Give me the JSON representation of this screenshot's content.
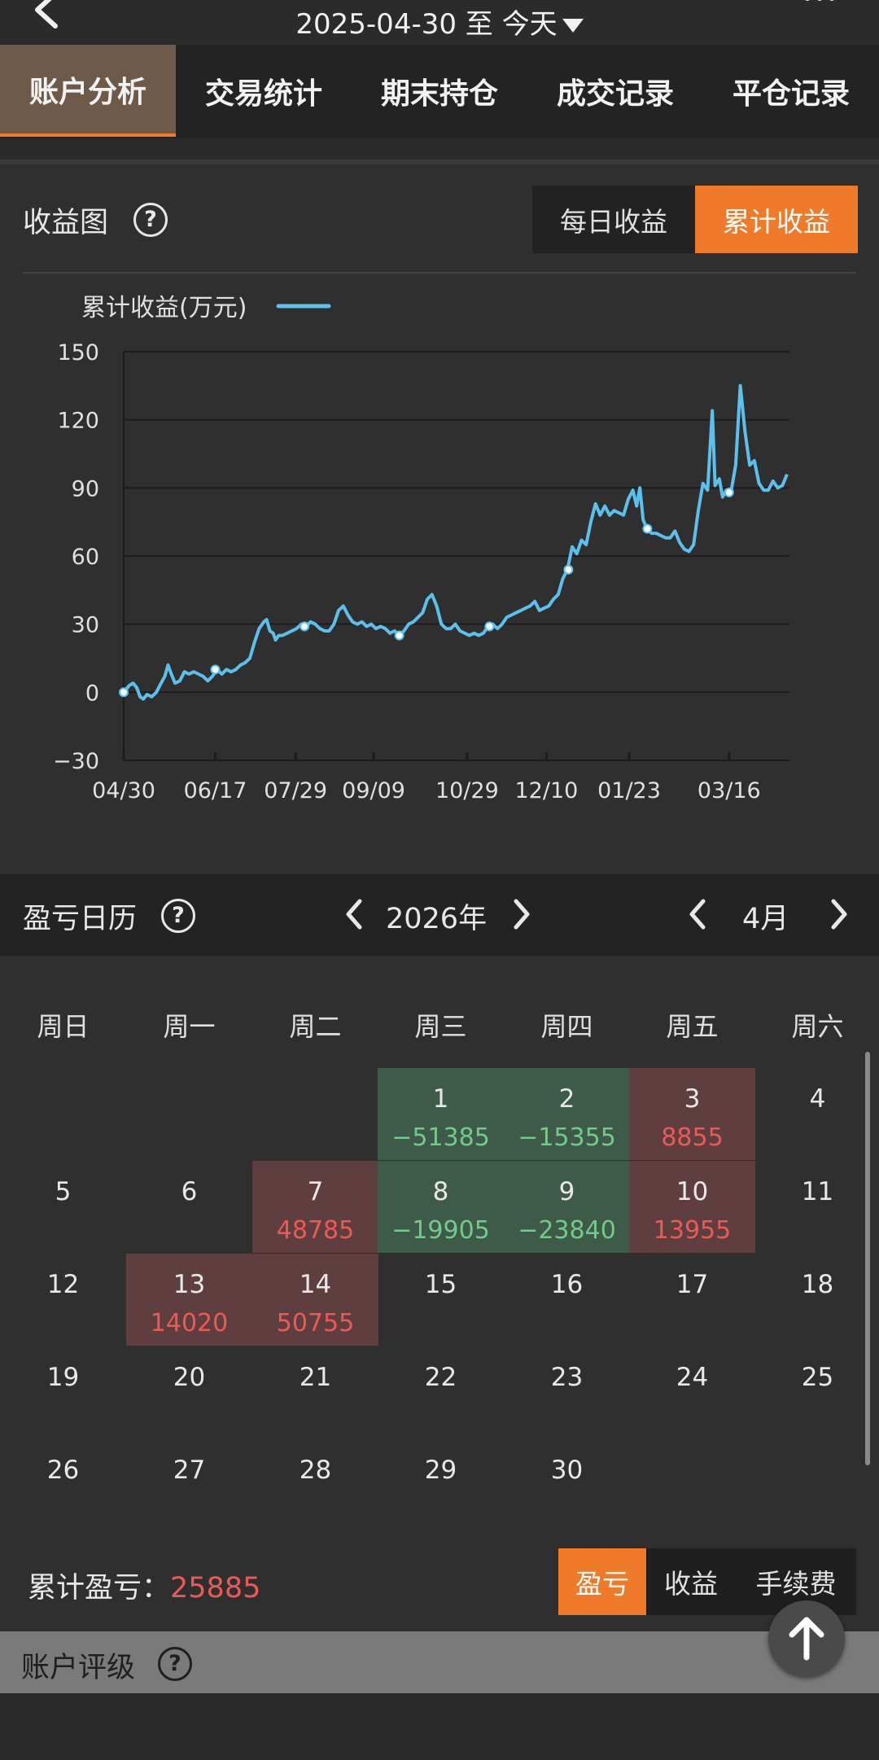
{
  "header": {
    "date_from": "2025-04-30",
    "date_sep": "至",
    "date_to": "今天"
  },
  "tabs": [
    {
      "label": "账户分析",
      "active": true
    },
    {
      "label": "交易统计",
      "active": false
    },
    {
      "label": "期末持仓",
      "active": false
    },
    {
      "label": "成交记录",
      "active": false
    },
    {
      "label": "平仓记录",
      "active": false
    }
  ],
  "profit_chart": {
    "title": "收益图",
    "help": "?",
    "toggle": [
      {
        "label": "每日收益",
        "active": false
      },
      {
        "label": "累计收益",
        "active": true
      }
    ]
  },
  "chart_data": {
    "type": "line",
    "legend": "累计收益(万元)",
    "series_color": "#5bc0eb",
    "x_labels": [
      "04/30",
      "06/17",
      "07/29",
      "09/09",
      "10/29",
      "12/10",
      "01/23",
      "03/16"
    ],
    "y_ticks": [
      "150",
      "120",
      "90",
      "60",
      "30",
      "0",
      "−30"
    ],
    "ylim": [
      -30,
      150
    ],
    "grid": true,
    "legend_position": "top-left",
    "points": [
      [
        0,
        0
      ],
      [
        1.2,
        3
      ],
      [
        2,
        4
      ],
      [
        2.8,
        2
      ],
      [
        3.5,
        -2
      ],
      [
        4.2,
        -3
      ],
      [
        5,
        -1
      ],
      [
        6,
        -2
      ],
      [
        7,
        0
      ],
      [
        8,
        4
      ],
      [
        8.8,
        7
      ],
      [
        9.5,
        12
      ],
      [
        10.2,
        8
      ],
      [
        11,
        4
      ],
      [
        12,
        5
      ],
      [
        13,
        9
      ],
      [
        14,
        8
      ],
      [
        15,
        9
      ],
      [
        16,
        8
      ],
      [
        17,
        7
      ],
      [
        18,
        5
      ],
      [
        19,
        7
      ],
      [
        20,
        10
      ],
      [
        21,
        8
      ],
      [
        22,
        10
      ],
      [
        23,
        9
      ],
      [
        24,
        10
      ],
      [
        25,
        12
      ],
      [
        26,
        13
      ],
      [
        27,
        15
      ],
      [
        28,
        22
      ],
      [
        29,
        28
      ],
      [
        30,
        31
      ],
      [
        30.6,
        32
      ],
      [
        31.3,
        27
      ],
      [
        32,
        26
      ],
      [
        32.5,
        23
      ],
      [
        33.2,
        25
      ],
      [
        34,
        25
      ],
      [
        35,
        26
      ],
      [
        36,
        27
      ],
      [
        37,
        28
      ],
      [
        38,
        30
      ],
      [
        39,
        29
      ],
      [
        40,
        31
      ],
      [
        41,
        30
      ],
      [
        42,
        28
      ],
      [
        43,
        27
      ],
      [
        44,
        27
      ],
      [
        45,
        30
      ],
      [
        46,
        36
      ],
      [
        47,
        38
      ],
      [
        48,
        34
      ],
      [
        49,
        31
      ],
      [
        50,
        30
      ],
      [
        51,
        31
      ],
      [
        52,
        29
      ],
      [
        53,
        30
      ],
      [
        54,
        28
      ],
      [
        55,
        29
      ],
      [
        56,
        28
      ],
      [
        57,
        26
      ],
      [
        58,
        27
      ],
      [
        59,
        25
      ],
      [
        60,
        27
      ],
      [
        61,
        30
      ],
      [
        62,
        31
      ],
      [
        63,
        33
      ],
      [
        64,
        35
      ],
      [
        65,
        41
      ],
      [
        66,
        43
      ],
      [
        67,
        38
      ],
      [
        68,
        30
      ],
      [
        69,
        28
      ],
      [
        70,
        28
      ],
      [
        71,
        30
      ],
      [
        72,
        27
      ],
      [
        73,
        26
      ],
      [
        74,
        25
      ],
      [
        75,
        26
      ],
      [
        76,
        25
      ],
      [
        77,
        26
      ],
      [
        78,
        29
      ],
      [
        79,
        30
      ],
      [
        80,
        28
      ],
      [
        81,
        30
      ],
      [
        82,
        33
      ],
      [
        83,
        34
      ],
      [
        84,
        35
      ],
      [
        85,
        36
      ],
      [
        86,
        37
      ],
      [
        87,
        38
      ],
      [
        88,
        40
      ],
      [
        89,
        36
      ],
      [
        90,
        37
      ],
      [
        91,
        38
      ],
      [
        92,
        41
      ],
      [
        93,
        43
      ],
      [
        94,
        50
      ],
      [
        95,
        54
      ],
      [
        96,
        64
      ],
      [
        97,
        61
      ],
      [
        98,
        67
      ],
      [
        99,
        65
      ],
      [
        100,
        75
      ],
      [
        101,
        83
      ],
      [
        102,
        78
      ],
      [
        103,
        82
      ],
      [
        104,
        78
      ],
      [
        105,
        80
      ],
      [
        106,
        79
      ],
      [
        107,
        78
      ],
      [
        108,
        85
      ],
      [
        109,
        89
      ],
      [
        109.8,
        82
      ],
      [
        110.5,
        90
      ],
      [
        111.2,
        76
      ],
      [
        112,
        72
      ],
      [
        113,
        70
      ],
      [
        114,
        70
      ],
      [
        115,
        69
      ],
      [
        116,
        68
      ],
      [
        117,
        68
      ],
      [
        118,
        71
      ],
      [
        119,
        66
      ],
      [
        120,
        63
      ],
      [
        121,
        62
      ],
      [
        122,
        65
      ],
      [
        123,
        80
      ],
      [
        124,
        92
      ],
      [
        125,
        89
      ],
      [
        126,
        124
      ],
      [
        126.6,
        91
      ],
      [
        127.5,
        94
      ],
      [
        128.2,
        86
      ],
      [
        129,
        89
      ],
      [
        130,
        88
      ],
      [
        131,
        100
      ],
      [
        132,
        135
      ],
      [
        133,
        115
      ],
      [
        134,
        100
      ],
      [
        135,
        102
      ],
      [
        136,
        92
      ],
      [
        137,
        89
      ],
      [
        138,
        89
      ],
      [
        139,
        93
      ],
      [
        140,
        90
      ],
      [
        141,
        91
      ],
      [
        142,
        96
      ]
    ],
    "x_label_positions": [
      0,
      19.6,
      36.8,
      53.5,
      73.5,
      90.5,
      108.2,
      129.6
    ],
    "marker_points": [
      0,
      19.6,
      38.7,
      59,
      78.3,
      95.2,
      112.1,
      129.6
    ]
  },
  "calendar": {
    "title": "盈亏日历",
    "help": "?",
    "year": "2026年",
    "month": "4月",
    "weekdays": [
      "周日",
      "周一",
      "周二",
      "周三",
      "周四",
      "周五",
      "周六"
    ],
    "weeks": [
      [
        {
          "day": "",
          "pl": "",
          "kind": ""
        },
        {
          "day": "",
          "pl": "",
          "kind": ""
        },
        {
          "day": "",
          "pl": "",
          "kind": ""
        },
        {
          "day": "1",
          "pl": "−51385",
          "kind": "loss"
        },
        {
          "day": "2",
          "pl": "−15355",
          "kind": "loss"
        },
        {
          "day": "3",
          "pl": "8855",
          "kind": "gain"
        },
        {
          "day": "4",
          "pl": "",
          "kind": ""
        }
      ],
      [
        {
          "day": "5",
          "pl": "",
          "kind": ""
        },
        {
          "day": "6",
          "pl": "",
          "kind": ""
        },
        {
          "day": "7",
          "pl": "48785",
          "kind": "gain"
        },
        {
          "day": "8",
          "pl": "−19905",
          "kind": "loss"
        },
        {
          "day": "9",
          "pl": "−23840",
          "kind": "loss"
        },
        {
          "day": "10",
          "pl": "13955",
          "kind": "gain"
        },
        {
          "day": "11",
          "pl": "",
          "kind": ""
        }
      ],
      [
        {
          "day": "12",
          "pl": "",
          "kind": ""
        },
        {
          "day": "13",
          "pl": "14020",
          "kind": "gain"
        },
        {
          "day": "14",
          "pl": "50755",
          "kind": "gain"
        },
        {
          "day": "15",
          "pl": "",
          "kind": ""
        },
        {
          "day": "16",
          "pl": "",
          "kind": ""
        },
        {
          "day": "17",
          "pl": "",
          "kind": ""
        },
        {
          "day": "18",
          "pl": "",
          "kind": ""
        }
      ],
      [
        {
          "day": "19",
          "pl": "",
          "kind": ""
        },
        {
          "day": "20",
          "pl": "",
          "kind": ""
        },
        {
          "day": "21",
          "pl": "",
          "kind": ""
        },
        {
          "day": "22",
          "pl": "",
          "kind": ""
        },
        {
          "day": "23",
          "pl": "",
          "kind": ""
        },
        {
          "day": "24",
          "pl": "",
          "kind": ""
        },
        {
          "day": "25",
          "pl": "",
          "kind": ""
        }
      ],
      [
        {
          "day": "26",
          "pl": "",
          "kind": ""
        },
        {
          "day": "27",
          "pl": "",
          "kind": ""
        },
        {
          "day": "28",
          "pl": "",
          "kind": ""
        },
        {
          "day": "29",
          "pl": "",
          "kind": ""
        },
        {
          "day": "30",
          "pl": "",
          "kind": ""
        },
        {
          "day": "",
          "pl": "",
          "kind": ""
        },
        {
          "day": "",
          "pl": "",
          "kind": ""
        }
      ]
    ],
    "total_label": "累计盈亏：",
    "total_value": "25885",
    "mode_toggle": [
      {
        "label": "盈亏",
        "active": true
      },
      {
        "label": "收益",
        "active": false
      },
      {
        "label": "手续费",
        "active": false
      }
    ]
  },
  "account_rating": {
    "title": "账户评级",
    "help": "?"
  },
  "colors": {
    "accent": "#ee7a2a",
    "gain": "#ec5a56",
    "loss": "#75c98a",
    "line": "#5bc0eb"
  }
}
